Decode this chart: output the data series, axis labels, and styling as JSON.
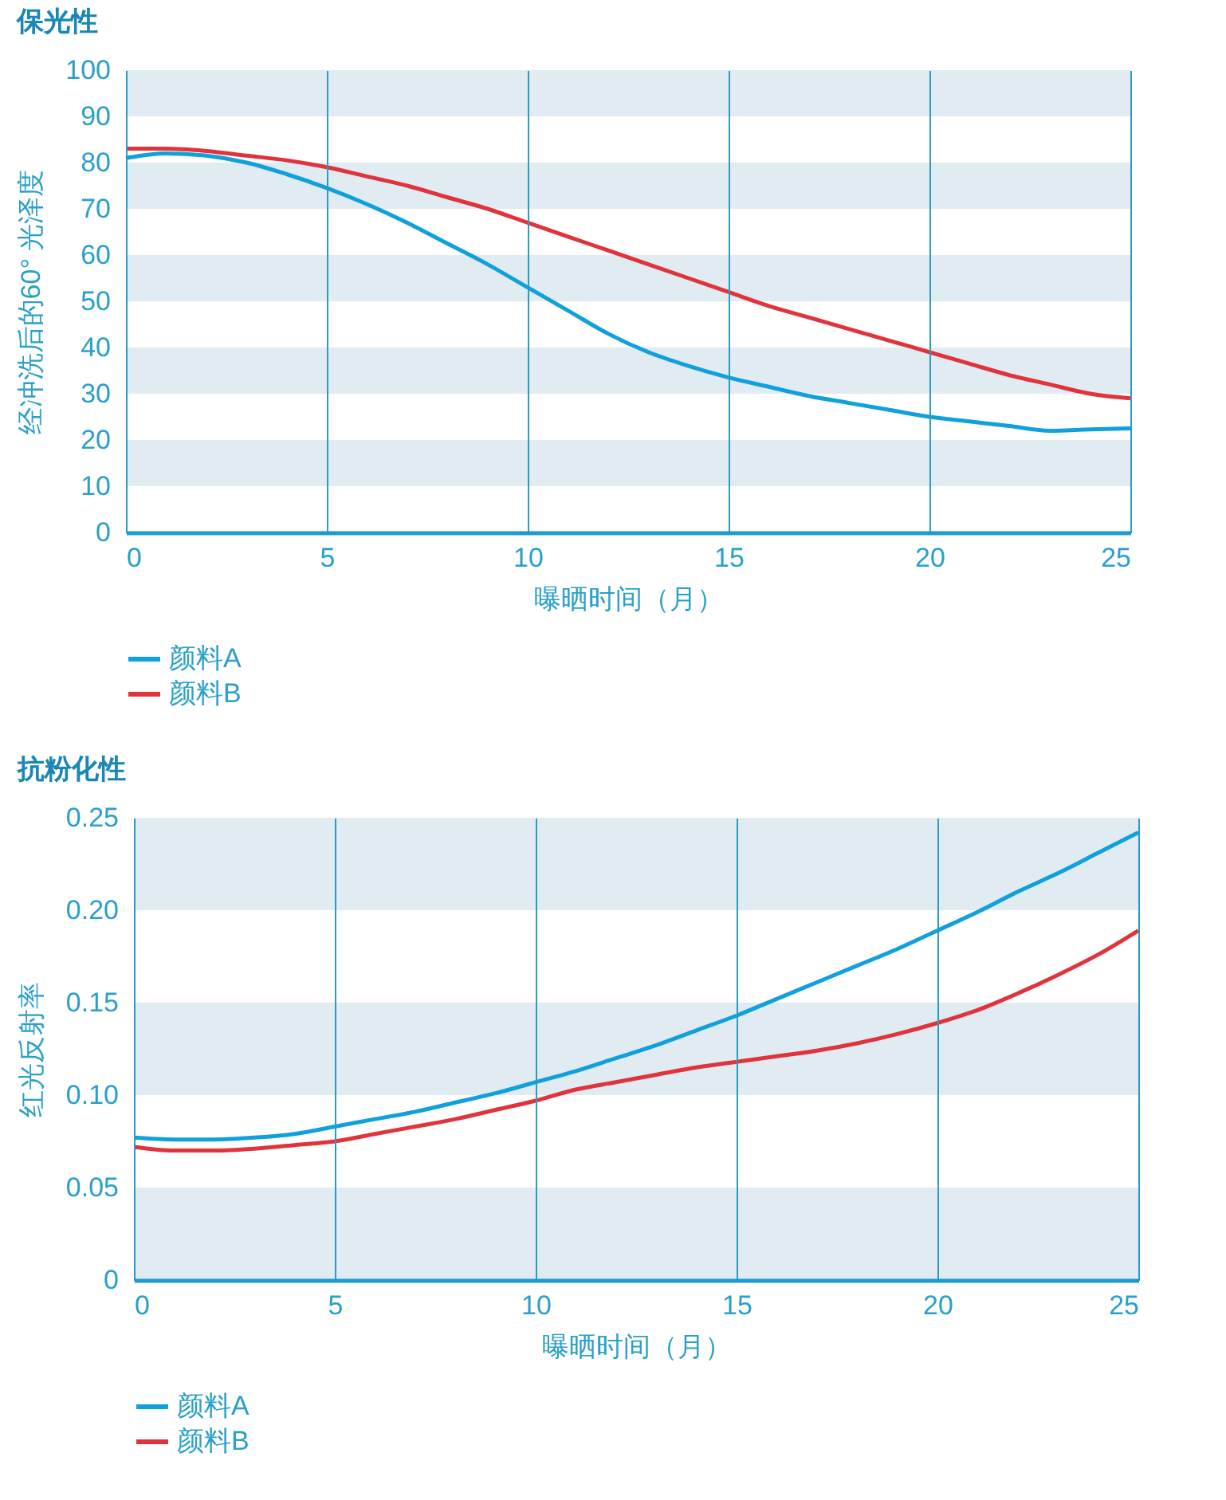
{
  "chart_data": [
    {
      "type": "line",
      "title": "保光性",
      "xlabel": "曝晒时间（月）",
      "ylabel": "经冲洗后的60° 光泽度",
      "x": [
        0,
        1,
        2,
        3,
        4,
        5,
        6,
        7,
        8,
        9,
        10,
        11,
        12,
        13,
        14,
        15,
        16,
        17,
        18,
        19,
        20,
        21,
        22,
        23,
        24,
        25
      ],
      "series": [
        {
          "name": "颜料A",
          "color": "#10a0dc",
          "values": [
            81,
            82,
            81.5,
            80,
            77.5,
            74.5,
            71,
            67,
            62.5,
            58,
            53,
            48,
            43,
            39,
            36,
            33.5,
            31.5,
            29.5,
            28,
            26.5,
            25,
            24,
            23,
            22,
            22.3,
            22.5
          ]
        },
        {
          "name": "颜料B",
          "color": "#e0333c",
          "values": [
            83,
            83,
            82.5,
            81.5,
            80.5,
            79,
            77,
            75,
            72.5,
            70,
            67,
            64,
            61,
            58,
            55,
            52,
            49,
            46.5,
            44,
            41.5,
            39,
            36.5,
            34,
            32,
            30,
            29
          ]
        }
      ],
      "xlim": [
        0,
        25
      ],
      "xticks": [
        0,
        5,
        10,
        15,
        20,
        25
      ],
      "ylim": [
        0,
        100
      ],
      "yticks": [
        0,
        10,
        20,
        30,
        40,
        50,
        60,
        70,
        80,
        90,
        100
      ],
      "bands": [
        {
          "axis": "y",
          "from": 10,
          "to": 20,
          "color": "#e1ebf2"
        },
        {
          "axis": "y",
          "from": 30,
          "to": 40,
          "color": "#e1ebf2"
        },
        {
          "axis": "y",
          "from": 50,
          "to": 60,
          "color": "#e1ebf2"
        },
        {
          "axis": "y",
          "from": 70,
          "to": 80,
          "color": "#e1ebf2"
        },
        {
          "axis": "y",
          "from": 90,
          "to": 100,
          "color": "#e1ebf2"
        }
      ],
      "grid": "x",
      "legend": "bottom left",
      "marker": "none",
      "line_style": "solid"
    },
    {
      "type": "line",
      "title": "抗粉化性",
      "xlabel": "曝晒时间（月）",
      "ylabel": "红光反射率",
      "x": [
        0,
        1,
        2,
        3,
        4,
        5,
        6,
        7,
        8,
        9,
        10,
        11,
        12,
        13,
        14,
        15,
        16,
        17,
        18,
        19,
        20,
        21,
        22,
        23,
        24,
        25
      ],
      "series": [
        {
          "name": "颜料A",
          "color": "#10a0dc",
          "values": [
            0.077,
            0.076,
            0.076,
            0.077,
            0.079,
            0.083,
            0.087,
            0.091,
            0.096,
            0.101,
            0.107,
            0.113,
            0.12,
            0.127,
            0.135,
            0.143,
            0.152,
            0.161,
            0.17,
            0.179,
            0.189,
            0.199,
            0.21,
            0.22,
            0.231,
            0.242
          ]
        },
        {
          "name": "颜料B",
          "color": "#e0333c",
          "values": [
            0.072,
            0.07,
            0.07,
            0.071,
            0.073,
            0.075,
            0.079,
            0.083,
            0.087,
            0.092,
            0.097,
            0.103,
            0.107,
            0.111,
            0.115,
            0.118,
            0.121,
            0.124,
            0.128,
            0.133,
            0.139,
            0.146,
            0.155,
            0.165,
            0.176,
            0.189
          ]
        }
      ],
      "xlim": [
        0,
        25
      ],
      "xticks": [
        0,
        5,
        10,
        15,
        20,
        25
      ],
      "ylim": [
        0,
        0.25
      ],
      "yticks": [
        {
          "value": 0,
          "label": "0"
        },
        {
          "value": 0.05,
          "label": "0.05"
        },
        {
          "value": 0.1,
          "label": "0.10"
        },
        {
          "value": 0.15,
          "label": "0.15"
        },
        {
          "value": 0.2,
          "label": "0.20"
        },
        {
          "value": 0.25,
          "label": "0.25"
        }
      ],
      "bands": [
        {
          "axis": "y",
          "from": 0,
          "to": 0.05,
          "color": "#e1ebf2"
        },
        {
          "axis": "y",
          "from": 0.1,
          "to": 0.15,
          "color": "#e1ebf2"
        },
        {
          "axis": "y",
          "from": 0.2,
          "to": 0.25,
          "color": "#e1ebf2"
        }
      ],
      "grid": "x",
      "legend": "bottom left",
      "marker": "none",
      "line_style": "solid"
    }
  ]
}
